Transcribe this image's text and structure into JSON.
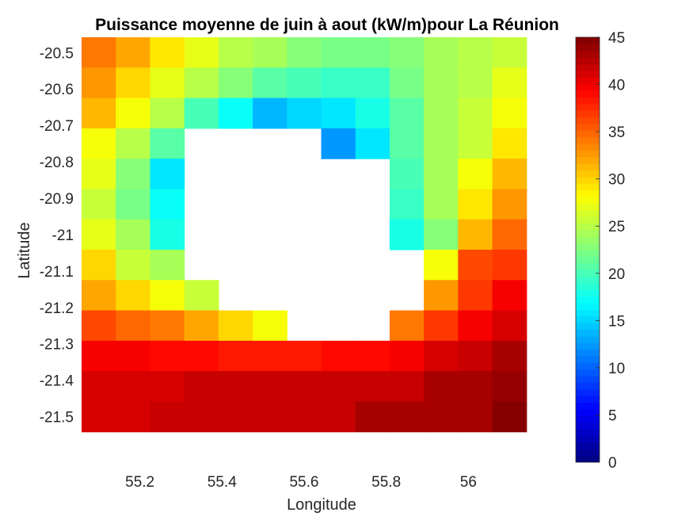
{
  "chart_data": {
    "type": "heatmap",
    "title": "Puissance moyenne de juin à aout (kW/m)pour La Réunion",
    "xlabel": "Longitude",
    "ylabel": "Latitude",
    "x_centers": [
      55.1,
      55.183,
      55.267,
      55.35,
      55.433,
      55.517,
      55.6,
      55.683,
      55.767,
      55.85,
      55.933,
      56.017,
      56.1,
      56.183
    ],
    "y_centers": [
      -20.5,
      -20.583,
      -20.667,
      -20.75,
      -20.833,
      -20.917,
      -21.0,
      -21.083,
      -21.167,
      -21.25,
      -21.333,
      -21.417,
      -21.5,
      -21.583
    ],
    "xlim": [
      55.058,
      56.225
    ],
    "ylim": [
      -21.625,
      -20.458
    ],
    "x_ticks": [
      55.2,
      55.4,
      55.6,
      55.8,
      56
    ],
    "x_tick_labels": [
      "55.2",
      "55.4",
      "55.6",
      "55.8",
      "56"
    ],
    "y_ticks": [
      -20.5,
      -20.6,
      -20.7,
      -20.8,
      -20.9,
      -21,
      -21.1,
      -21.2,
      -21.3,
      -21.4,
      -21.5
    ],
    "y_tick_labels": [
      "-20.5",
      "-20.6",
      "-20.7",
      "-20.8",
      "-20.9",
      "-21",
      "-21.1",
      "-21.2",
      "-21.3",
      "-21.4",
      "-21.5"
    ],
    "colorbar": {
      "colormap": "jet",
      "range": [
        0,
        45
      ],
      "ticks": [
        0,
        5,
        10,
        15,
        20,
        25,
        30,
        35,
        40,
        45
      ],
      "tick_labels": [
        "0",
        "5",
        "10",
        "15",
        "20",
        "25",
        "30",
        "35",
        "40",
        "45"
      ],
      "levels": 64
    },
    "values_note_nan": "null = land / no data (white)",
    "values": [
      [
        34,
        32,
        29,
        27,
        25,
        24,
        23,
        22,
        22,
        23,
        24,
        25,
        26,
        null
      ],
      [
        33,
        30,
        27,
        25,
        23,
        21,
        20,
        19,
        19,
        22,
        24,
        25,
        27,
        null
      ],
      [
        31,
        28,
        25,
        20,
        17,
        14,
        15,
        16,
        18,
        21,
        24,
        26,
        28,
        null
      ],
      [
        28,
        25,
        21,
        null,
        null,
        null,
        null,
        12,
        16,
        21,
        24,
        26,
        29,
        null
      ],
      [
        27,
        23,
        16,
        null,
        null,
        null,
        null,
        null,
        null,
        20,
        24,
        28,
        31,
        null
      ],
      [
        26,
        22,
        17,
        null,
        null,
        null,
        null,
        null,
        null,
        19,
        24,
        29,
        33,
        null
      ],
      [
        27,
        24,
        18,
        null,
        null,
        null,
        null,
        null,
        null,
        18,
        23,
        31,
        35,
        null
      ],
      [
        30,
        26,
        24,
        null,
        null,
        null,
        null,
        null,
        null,
        null,
        28,
        36,
        37,
        null
      ],
      [
        32,
        30,
        28,
        26,
        null,
        null,
        null,
        null,
        null,
        null,
        33,
        37,
        40,
        null
      ],
      [
        36,
        35,
        34,
        32,
        30,
        28,
        null,
        null,
        null,
        34,
        37,
        40,
        41,
        null
      ],
      [
        40,
        40,
        39,
        39,
        38,
        38,
        38,
        39,
        39,
        40,
        41,
        42,
        43,
        null
      ],
      [
        41,
        41,
        41,
        42,
        42,
        42,
        42,
        42,
        42,
        42,
        43,
        43,
        44,
        null
      ],
      [
        41,
        41,
        42,
        42,
        42,
        42,
        42,
        42,
        43,
        43,
        43,
        43,
        45,
        null
      ],
      [
        null,
        null,
        null,
        null,
        null,
        null,
        null,
        null,
        null,
        null,
        null,
        null,
        null,
        null
      ]
    ]
  }
}
